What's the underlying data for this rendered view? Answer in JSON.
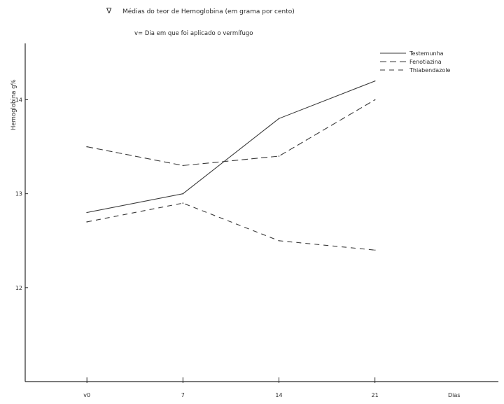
{
  "header": {
    "marker": "∇",
    "title": "Médias do teor de Hemoglobina (em grama por cento)",
    "note": "v= Dia em que foi aplicado o vermífugo"
  },
  "chart_data": {
    "type": "line",
    "title": "Médias do teor de Hemoglobina (em grama por cento)",
    "subtitle": "v= Dia em que foi aplicado o vermífugo",
    "xlabel": "Dias",
    "ylabel": "Hemoglobina g%",
    "x": [
      0,
      7,
      14,
      21
    ],
    "x_tick_labels": [
      "v0",
      "7",
      "14",
      "21"
    ],
    "y_ticks": [
      12,
      13,
      14
    ],
    "xlim": [
      -4.5,
      30
    ],
    "ylim": [
      11,
      14.6
    ],
    "grid": false,
    "legend_position": "top-right",
    "series": [
      {
        "name": "Testemunha",
        "style": "solid",
        "values": [
          12.8,
          13.0,
          13.8,
          14.2
        ]
      },
      {
        "name": "Fenotiazina",
        "style": "dashed",
        "values": [
          13.5,
          13.3,
          13.4,
          14.0
        ]
      },
      {
        "name": "Thiabendazole",
        "style": "dashed",
        "values": [
          12.7,
          12.9,
          12.5,
          12.4
        ]
      }
    ],
    "colors": {
      "line": "#3a3a3a",
      "axis": "#2a2a2a"
    }
  }
}
